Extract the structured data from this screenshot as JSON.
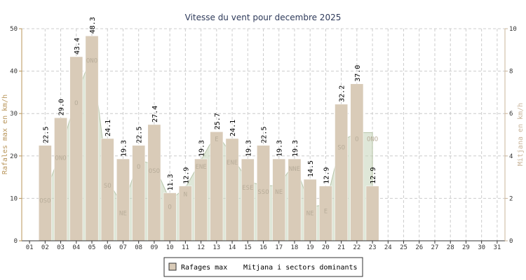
{
  "chart_data": {
    "type": "bar",
    "title": "Vitesse du vent pour decembre 2025",
    "ylabel_left": "Rafales max en km/h",
    "ylabel_right": "Mitjana en km/h",
    "ylim_left": [
      0,
      50
    ],
    "ylim_right": [
      0,
      10
    ],
    "yticks_left": [
      "0",
      "10",
      "20",
      "30",
      "40",
      "50"
    ],
    "yticks_right": [
      "0",
      "2",
      "4",
      "6",
      "8",
      "10"
    ],
    "grid": true,
    "legend_position": "bottom",
    "categories": [
      "01",
      "02",
      "03",
      "04",
      "05",
      "06",
      "07",
      "08",
      "09",
      "10",
      "11",
      "12",
      "13",
      "14",
      "15",
      "16",
      "17",
      "18",
      "19",
      "20",
      "21",
      "22",
      "23",
      "24",
      "25",
      "26",
      "27",
      "28",
      "29",
      "30",
      "31"
    ],
    "series": [
      {
        "name": "Rafages max",
        "type": "bar",
        "color": "#d9cbb8",
        "values": [
          null,
          22.5,
          29.0,
          43.4,
          48.3,
          24.1,
          19.3,
          22.5,
          27.4,
          11.3,
          12.9,
          19.3,
          25.7,
          24.1,
          19.3,
          22.5,
          19.3,
          19.3,
          14.5,
          12.9,
          32.2,
          37.0,
          12.9,
          null,
          null,
          null,
          null,
          null,
          null,
          null,
          null
        ],
        "labels": [
          "",
          "22.5",
          "29.0",
          "43.4",
          "48.3",
          "24.1",
          "19.3",
          "22.5",
          "27.4",
          "11.3",
          "12.9",
          "19.3",
          "25.7",
          "24.1",
          "19.3",
          "22.5",
          "19.3",
          "19.3",
          "14.5",
          "12.9",
          "32.2",
          "37.0",
          "12.9",
          "",
          "",
          "",
          "",
          "",
          "",
          "",
          ""
        ]
      },
      {
        "name": "Mitjana i sectors dominants",
        "type": "area",
        "color": "#c5d4b8",
        "values": [
          null,
          2.2,
          4.2,
          6.8,
          8.8,
          2.9,
          1.6,
          3.8,
          3.6,
          1.9,
          2.5,
          3.8,
          5.1,
          4.0,
          2.8,
          2.6,
          2.6,
          3.7,
          1.6,
          1.7,
          4.7,
          5.1,
          5.1,
          null,
          null,
          null,
          null,
          null,
          null,
          null,
          null
        ],
        "sectors": [
          "",
          "OSO",
          "ONO",
          "O",
          "ONO",
          "SO",
          "NE",
          "O",
          "OSO",
          "O",
          "N",
          "ENE",
          "E",
          "ENE",
          "ESE",
          "SSO",
          "NE",
          "NNE",
          "NE",
          "E",
          "SO",
          "O",
          "ONO",
          "",
          "",
          "",
          "",
          "",
          "",
          "",
          ""
        ]
      }
    ]
  }
}
